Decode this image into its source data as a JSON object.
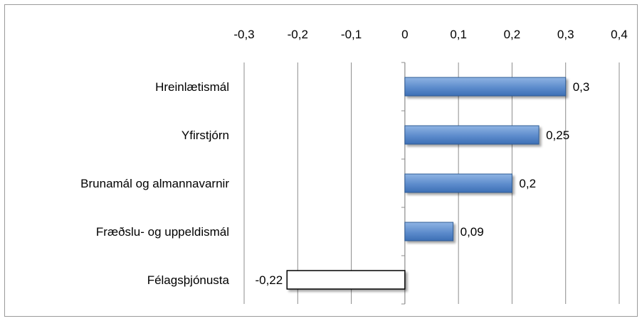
{
  "chart_data": {
    "type": "bar",
    "orientation": "horizontal",
    "categories": [
      "Hreinlætismál",
      "Yfirstjórn",
      "Brunamál og almannavarnir",
      "Fræðslu- og uppeldismál",
      "Félagsþjónusta"
    ],
    "values": [
      0.3,
      0.25,
      0.2,
      0.09,
      -0.22
    ],
    "data_labels": [
      "0,3",
      "0,25",
      "0,2",
      "0,09",
      "-0,22"
    ],
    "xlim": [
      -0.3,
      0.4
    ],
    "xticks": [
      -0.3,
      -0.2,
      -0.1,
      0,
      0.1,
      0.2,
      0.3,
      0.4
    ],
    "xtick_labels": [
      "-0,3",
      "-0,2",
      "-0,1",
      "0",
      "0,1",
      "0,2",
      "0,3",
      "0,4"
    ],
    "x_axis_position": "top",
    "grid": true,
    "colors": {
      "positive_fill_top": "#8fb4e3",
      "positive_fill_bottom": "#3d6fb5",
      "positive_stroke": "#2f5b94",
      "negative_fill": "#ffffff",
      "negative_stroke": "#000000",
      "grid": "#8c8c8c"
    }
  }
}
